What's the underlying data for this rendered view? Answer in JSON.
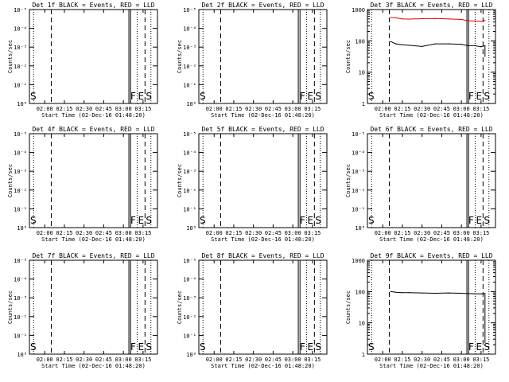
{
  "figure": {
    "x_tick_labels": [
      "02:00",
      "02:15",
      "02:30",
      "02:45",
      "03:00",
      "03:15"
    ],
    "x_label": "Start Time (02-Dec-16 01:48:20)",
    "y_label": "Counts/sec",
    "empty_y_ticks": [
      "10⁰",
      "10⁻¹",
      "10⁻²",
      "10⁻³",
      "10⁻⁴",
      "10⁻⁵"
    ],
    "log_y_ticks": [
      "1",
      "10",
      "100",
      "1000"
    ],
    "markers": [
      "F",
      "E",
      "S"
    ],
    "colors": {
      "events": "#000000",
      "lld": "#e00000"
    }
  },
  "chart_data": [
    {
      "type": "line",
      "title": "Det 1f BLACK = Events, RED = LLD",
      "detector": "1f",
      "x_range": [
        "01:48:20",
        "03:26"
      ],
      "has_data": false,
      "scale": "empty",
      "series": []
    },
    {
      "type": "line",
      "title": "Det 2f BLACK = Events, RED = LLD",
      "detector": "2f",
      "x_range": [
        "01:48:20",
        "03:26"
      ],
      "has_data": false,
      "scale": "empty",
      "series": []
    },
    {
      "type": "line",
      "title": "Det 3f BLACK = Events, RED = LLD",
      "detector": "3f",
      "x_range": [
        "01:48:20",
        "03:26"
      ],
      "has_data": true,
      "scale": "log",
      "ylim": [
        1,
        1000
      ],
      "series": [
        {
          "color": "#e00000",
          "x": [
            "02:06",
            "02:10",
            "02:15",
            "02:20",
            "02:30",
            "02:40",
            "02:50",
            "03:00",
            "03:05",
            "03:10",
            "03:15",
            "03:18"
          ],
          "y": [
            560,
            540,
            500,
            495,
            510,
            520,
            500,
            480,
            440,
            430,
            420,
            450
          ]
        },
        {
          "color": "#000000",
          "x": [
            "02:06",
            "02:10",
            "02:15",
            "02:20",
            "02:30",
            "02:40",
            "02:50",
            "03:00",
            "03:05",
            "03:10",
            "03:15",
            "03:18"
          ],
          "y": [
            95,
            80,
            75,
            72,
            66,
            80,
            80,
            78,
            70,
            70,
            65,
            70
          ]
        }
      ]
    },
    {
      "type": "line",
      "title": "Det 4f BLACK = Events, RED = LLD",
      "detector": "4f",
      "x_range": [
        "01:48:20",
        "03:26"
      ],
      "has_data": false,
      "scale": "empty",
      "series": []
    },
    {
      "type": "line",
      "title": "Det 5f BLACK = Events, RED = LLD",
      "detector": "5f",
      "x_range": [
        "01:48:20",
        "03:26"
      ],
      "has_data": false,
      "scale": "empty",
      "series": []
    },
    {
      "type": "line",
      "title": "Det 6f BLACK = Events, RED = LLD",
      "detector": "6f",
      "x_range": [
        "01:48:20",
        "03:26"
      ],
      "has_data": false,
      "scale": "empty",
      "series": []
    },
    {
      "type": "line",
      "title": "Det 7f BLACK = Events, RED = LLD",
      "detector": "7f",
      "x_range": [
        "01:48:20",
        "03:26"
      ],
      "has_data": false,
      "scale": "empty",
      "series": []
    },
    {
      "type": "line",
      "title": "Det 8f BLACK = Events, RED = LLD",
      "detector": "8f",
      "x_range": [
        "01:48:20",
        "03:26"
      ],
      "has_data": false,
      "scale": "empty",
      "series": []
    },
    {
      "type": "line",
      "title": "Det 9f BLACK = Events, RED = LLD",
      "detector": "9f",
      "x_range": [
        "01:48:20",
        "03:26"
      ],
      "has_data": true,
      "scale": "log",
      "ylim": [
        1,
        1000
      ],
      "series": [
        {
          "color": "#000000",
          "x": [
            "02:06",
            "02:10",
            "02:15",
            "02:20",
            "02:30",
            "02:40",
            "02:50",
            "03:00",
            "03:05",
            "03:10",
            "03:15",
            "03:18"
          ],
          "y": [
            100,
            95,
            92,
            92,
            90,
            88,
            90,
            88,
            86,
            85,
            84,
            86
          ]
        }
      ]
    }
  ]
}
